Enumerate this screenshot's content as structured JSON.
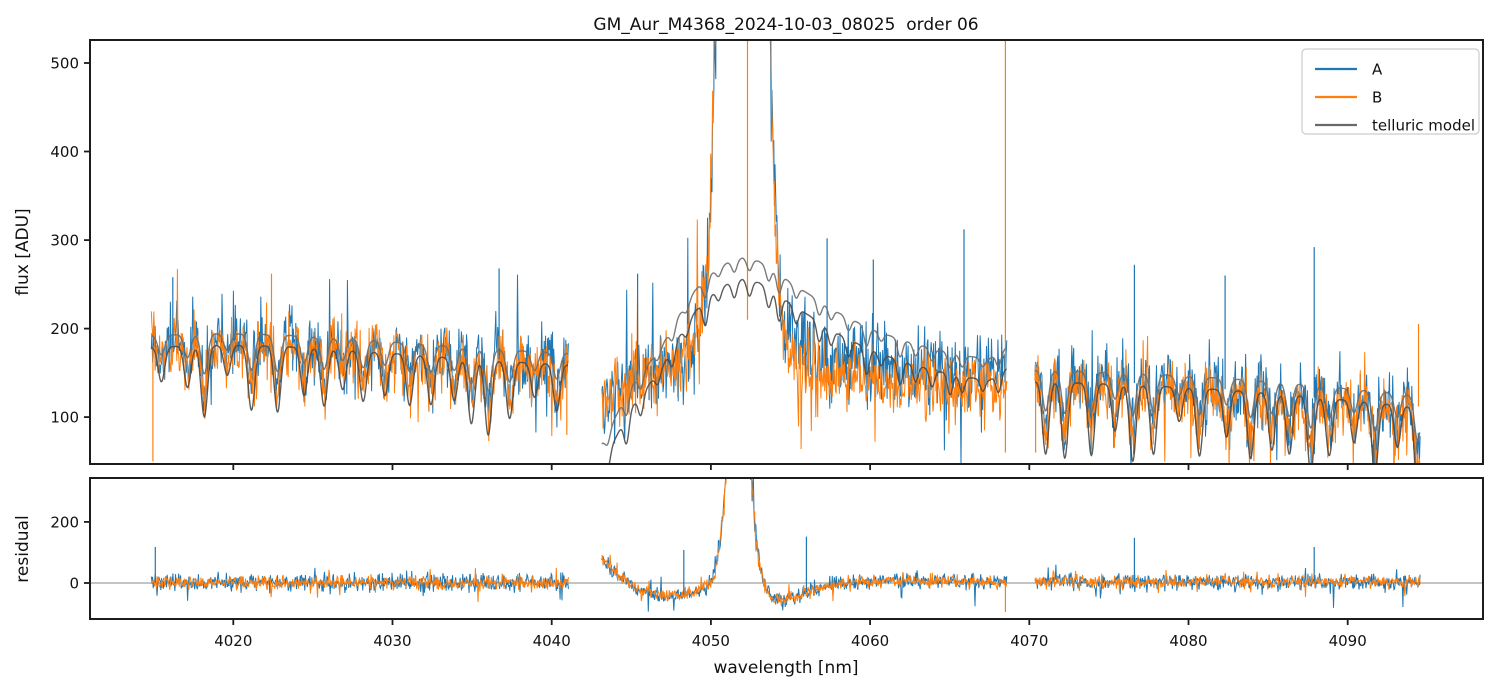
{
  "app": {
    "type": "matplotlib-figure",
    "background": "#ffffff"
  },
  "chart_data": {
    "type": "line",
    "title": "GM_Aur_M4368_2024-10-03_08025  order 06",
    "xlabel": "wavelength [nm]",
    "x_unit": "nm",
    "xlim": [
      4011.0,
      4098.5
    ],
    "xticks": [
      4020,
      4030,
      4040,
      4050,
      4060,
      4070,
      4080,
      4090
    ],
    "grid": false,
    "panels": [
      {
        "id": "flux",
        "ylabel": "flux [ADU]",
        "ylim": [
          47,
          526
        ],
        "yticks": [
          100,
          200,
          300,
          400,
          500
        ]
      },
      {
        "id": "residual",
        "ylabel": "residual",
        "ylim": [
          -118,
          344
        ],
        "yticks": [
          0,
          200
        ],
        "zero_line": 0
      }
    ],
    "legend": {
      "position": "upper right",
      "entries": [
        {
          "label": "A",
          "color": "#1f77b4"
        },
        {
          "label": "B",
          "color": "#ff7f0e"
        },
        {
          "label": "telluric model",
          "color": "#696969"
        }
      ]
    },
    "styles": {
      "A": "#1f77b4",
      "B": "#ff7f0e",
      "telluric_upper": "#6e6e6e",
      "telluric_lower": "#4a4a4a",
      "axes": "#1c1c1c",
      "zero_line": "#8a8a8a"
    },
    "noise_seed": 11,
    "segments": [
      {
        "xrange": [
          4014.85,
          4041.05
        ],
        "flux_center": {
          "x": [
            4014.9,
            4017,
            4020,
            4023,
            4026,
            4029,
            4032,
            4035,
            4038,
            4041
          ],
          "y": [
            179,
            183,
            185,
            183,
            179,
            175,
            171,
            167,
            164,
            161
          ]
        },
        "flux_noise": 40,
        "a_offset": {
          "x": [
            4014.9,
            4041
          ],
          "y": [
            5,
            5
          ]
        },
        "b_offset": {
          "x": [
            4014.9,
            4041
          ],
          "y": [
            0,
            0
          ]
        },
        "peak": null,
        "telluric": {
          "upper": {
            "x": [
              4014.9,
              4018,
              4021,
              4024,
              4027,
              4030,
              4033,
              4036,
              4039,
              4041
            ],
            "y": [
              192,
              194,
              194,
              192,
              189,
              185,
              181,
              177,
              174,
              172
            ]
          },
          "gap": 13,
          "dip_spacing": 1.4,
          "dip_depth": [
            22,
            80
          ],
          "dip_sigma": 0.21,
          "upper_dip_scale": 0.7,
          "lower_dip_scale": 1.25,
          "data_dip_scale": 0.8
        },
        "residual_center": {
          "x": [
            4014.9,
            4041
          ],
          "y": [
            1,
            1
          ]
        },
        "residual_noise": 25,
        "residual_peak": null,
        "spikes": [
          {
            "panel": "flux",
            "series": "B",
            "x": 4014.95,
            "to": 50
          },
          {
            "panel": "flux",
            "series": "B",
            "x": 4040.95,
            "to": 80
          },
          {
            "panel": "flux",
            "series": "A",
            "x": 4016.2,
            "to": 258
          },
          {
            "panel": "flux",
            "series": "B",
            "x": 4022.4,
            "to": 262
          },
          {
            "panel": "flux",
            "series": "A",
            "x": 4036.7,
            "to": 268
          },
          {
            "panel": "residual",
            "series": "A",
            "x": 4015.1,
            "to": 118
          }
        ]
      },
      {
        "xrange": [
          4043.15,
          4068.6
        ],
        "flux_center": {
          "x": [
            4043.2,
            4044.5,
            4046,
            4047.5,
            4049,
            4050,
            4050.7,
            4053.2,
            4054,
            4055,
            4056.5,
            4058,
            4060,
            4063,
            4066,
            4068,
            4068.6
          ],
          "y": [
            115,
            142,
            152,
            160,
            185,
            215,
            245,
            240,
            205,
            178,
            162,
            156,
            151,
            147,
            147,
            152,
            158
          ]
        },
        "flux_noise": 46,
        "a_offset": {
          "x": [
            4043.2,
            4050,
            4054,
            4068.6
          ],
          "y": [
            0,
            0,
            9,
            9
          ]
        },
        "b_offset": {
          "x": [
            4043.2,
            4050,
            4054,
            4068.6
          ],
          "y": [
            0,
            0,
            -11,
            -11
          ]
        },
        "peak": {
          "center": 4052.0,
          "sigma": 0.85,
          "amp": 2400
        },
        "telluric": {
          "upper": {
            "x": [
              4043.2,
              4044,
              4045,
              4046,
              4047,
              4048,
              4049,
              4050,
              4051,
              4052,
              4053,
              4054,
              4055,
              4056.5,
              4058,
              4060,
              4062,
              4064,
              4066,
              4067.5,
              4068.6
            ],
            "y": [
              72,
              100,
              135,
              158,
              183,
              215,
              243,
              262,
              274,
              280,
              276,
              266,
              252,
              235,
              218,
              200,
              187,
              177,
              169,
              166,
              179
            ]
          },
          "gap": 24,
          "dip_spacing": 1.0,
          "dip_depth": [
            8,
            28
          ],
          "dip_sigma": 0.16,
          "upper_dip_scale": 0.8,
          "lower_dip_scale": 1.1,
          "data_dip_scale": 0.5
        },
        "residual_center": {
          "x": [
            4043.2,
            4043.7,
            4044.5,
            4045.5,
            4047,
            4048.5,
            4049.7,
            4053.7,
            4054.6,
            4055.5,
            4056.5,
            4058,
            4060,
            4064,
            4068.6
          ],
          "y": [
            78,
            48,
            12,
            -25,
            -42,
            -38,
            -12,
            -48,
            -58,
            -40,
            -20,
            -4,
            6,
            8,
            2
          ]
        },
        "residual_noise": 23,
        "residual_peak": {
          "center": 4051.75,
          "sigma": 0.65,
          "amp": 800
        },
        "spikes": [
          {
            "panel": "flux",
            "series": "A",
            "x": 4045.4,
            "to": 262
          },
          {
            "panel": "flux",
            "series": "A",
            "x": 4057.3,
            "to": 302
          },
          {
            "panel": "flux",
            "series": "A",
            "x": 4060.2,
            "to": 278
          },
          {
            "panel": "flux",
            "series": "A",
            "x": 4065.9,
            "to": 312
          },
          {
            "panel": "flux",
            "series": "B",
            "x": 4052.3,
            "to": 210
          },
          {
            "panel": "flux",
            "series": "B",
            "x": 4068.5,
            "from": 60,
            "to": 527
          },
          {
            "panel": "residual",
            "series": "A",
            "x": 4048.3,
            "to": 108
          },
          {
            "panel": "residual",
            "series": "A",
            "x": 4056.0,
            "to": 152
          },
          {
            "panel": "residual",
            "series": "B",
            "x": 4068.5,
            "to": -95
          }
        ]
      },
      {
        "xrange": [
          4070.35,
          4094.55
        ],
        "flux_center": {
          "x": [
            4070.4,
            4073,
            4076,
            4079,
            4082,
            4085,
            4088,
            4091,
            4094.5
          ],
          "y": [
            143,
            141,
            139,
            136,
            132,
            127,
            122,
            117,
            112
          ]
        },
        "flux_noise": 42,
        "a_offset": {
          "x": [
            4070.4,
            4094.5
          ],
          "y": [
            6,
            6
          ]
        },
        "b_offset": {
          "x": [
            4070.4,
            4094.5
          ],
          "y": [
            -4,
            -4
          ]
        },
        "peak": null,
        "telluric": {
          "upper": {
            "x": [
              4070.4,
              4074,
              4078,
              4082,
              4086,
              4090,
              4094.5
            ],
            "y": [
              153,
              151,
              148,
              144,
              139,
              132,
              124
            ]
          },
          "gap": 13,
          "dip_spacing": 1.35,
          "dip_depth": [
            22,
            75
          ],
          "dip_sigma": 0.2,
          "upper_dip_scale": 0.7,
          "lower_dip_scale": 1.25,
          "data_dip_scale": 0.8
        },
        "residual_center": {
          "x": [
            4070.4,
            4094.5
          ],
          "y": [
            4,
            4
          ]
        },
        "residual_noise": 24,
        "residual_peak": null,
        "spikes": [
          {
            "panel": "flux",
            "series": "A",
            "x": 4076.6,
            "to": 272
          },
          {
            "panel": "flux",
            "series": "A",
            "x": 4082.3,
            "to": 260
          },
          {
            "panel": "flux",
            "series": "A",
            "x": 4087.9,
            "to": 292
          },
          {
            "panel": "flux",
            "series": "B",
            "x": 4094.45,
            "to": 205
          },
          {
            "panel": "flux",
            "series": "B",
            "x": 4070.4,
            "to": 60
          },
          {
            "panel": "residual",
            "series": "A",
            "x": 4076.6,
            "to": 148
          },
          {
            "panel": "residual",
            "series": "A",
            "x": 4087.9,
            "to": 118
          }
        ]
      }
    ]
  }
}
